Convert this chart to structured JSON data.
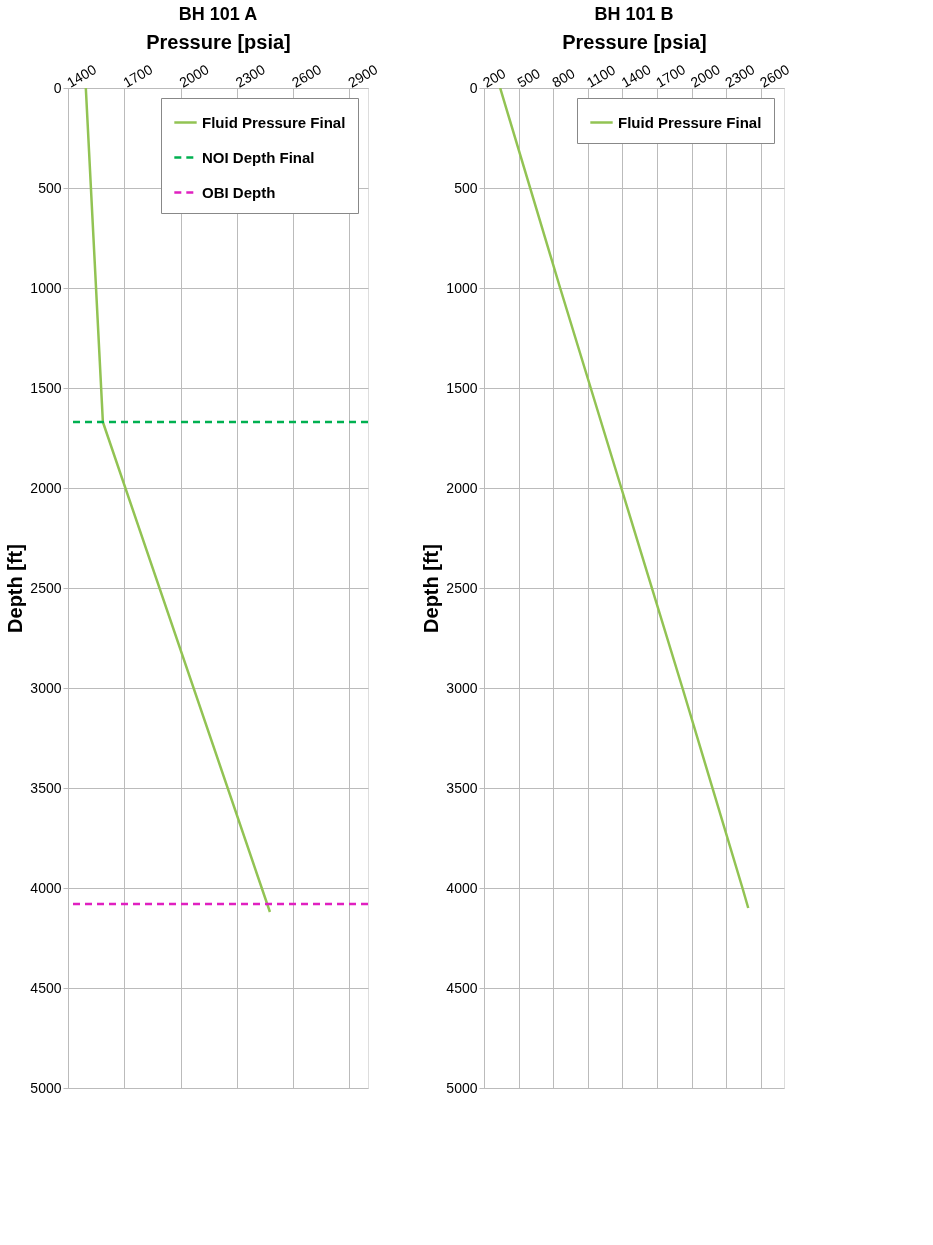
{
  "chart_data": [
    {
      "type": "line",
      "title": "BH 101 A",
      "xlabel": "Pressure [psia]",
      "ylabel": "Depth [ft]",
      "series": [
        {
          "name": "Fluid Pressure Final",
          "color": "#92c353",
          "x": [
            1495,
            1586,
            2477
          ],
          "values": [
            0,
            1670,
            4120
          ]
        }
      ],
      "ref_lines": [
        {
          "axis": "y",
          "value": 1670,
          "label": "NOI Depth Final",
          "color": "#00b050",
          "line_style": "dashed"
        },
        {
          "axis": "y",
          "value": 4080,
          "label": "OBI Depth",
          "color": "#e020c0",
          "line_style": "dashed"
        }
      ],
      "xlim": [
        1400,
        3000
      ],
      "xticks": [
        1400,
        1700,
        2000,
        2300,
        2600,
        2900
      ],
      "ylim": [
        5000,
        0
      ],
      "yticks": [
        0,
        500,
        1000,
        1500,
        2000,
        2500,
        3000,
        3500,
        4000,
        4500,
        5000
      ],
      "grid": true,
      "legend": "top right",
      "line_style": "solid",
      "marker": "none"
    },
    {
      "type": "line",
      "title": "BH 101 B",
      "xlabel": "Pressure [psia]",
      "ylabel": "Depth [ft]",
      "series": [
        {
          "name": "Fluid Pressure Final",
          "color": "#92c353",
          "x": [
            340,
            860,
            1390,
            1920,
            2440,
            2490
          ],
          "values": [
            0,
            1000,
            2000,
            3000,
            4000,
            4100
          ]
        }
      ],
      "xlim": [
        200,
        2800
      ],
      "xticks": [
        200,
        500,
        800,
        1100,
        1400,
        1700,
        2000,
        2300,
        2600
      ],
      "ylim": [
        5000,
        0
      ],
      "yticks": [
        0,
        500,
        1000,
        1500,
        2000,
        2500,
        3000,
        3500,
        4000,
        4500,
        5000
      ],
      "grid": true,
      "legend": "top right",
      "line_style": "solid",
      "marker": "none"
    }
  ]
}
